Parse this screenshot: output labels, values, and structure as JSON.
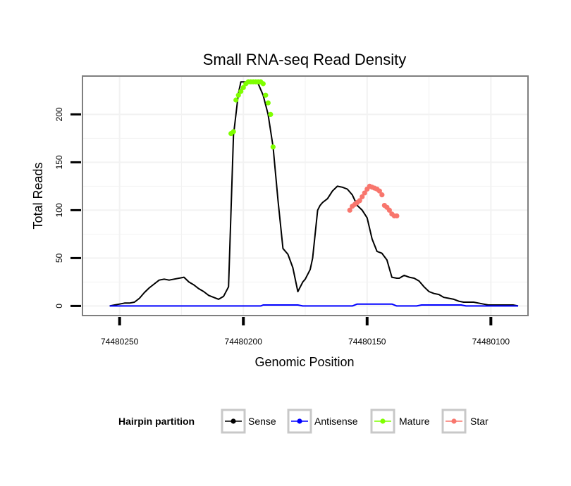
{
  "chart_data": {
    "type": "line",
    "title": "Small RNA-seq Read Density",
    "xlabel": "Genomic Position",
    "ylabel": "Total Reads",
    "x_reversed": true,
    "xlim": [
      74480265,
      74480085
    ],
    "ylim": [
      -10,
      240
    ],
    "x_ticks": [
      74480250,
      74480200,
      74480150,
      74480100
    ],
    "x_tick_labels": [
      "74480250",
      "74480200",
      "74480150",
      "74480100"
    ],
    "y_ticks": [
      0,
      50,
      100,
      150,
      200
    ],
    "y_tick_labels": [
      "0",
      "50",
      "100",
      "150",
      "200"
    ],
    "grid": true,
    "legend": {
      "title": "Hairpin partition",
      "position": "bottom",
      "entries": [
        {
          "name": "Sense",
          "color": "#000000"
        },
        {
          "name": "Antisense",
          "color": "#0000ff"
        },
        {
          "name": "Mature",
          "color": "#7fff00"
        },
        {
          "name": "Star",
          "color": "#f8766d"
        }
      ]
    },
    "series": [
      {
        "name": "Sense",
        "color": "#000000",
        "style": "line",
        "x": [
          74480254,
          74480252,
          74480250,
          74480248,
          74480246,
          74480244,
          74480242,
          74480240,
          74480238,
          74480236,
          74480234,
          74480232,
          74480230,
          74480228,
          74480226,
          74480224,
          74480222,
          74480220,
          74480218,
          74480216,
          74480214,
          74480212,
          74480210,
          74480208,
          74480206,
          74480204,
          74480202,
          74480201,
          74480199,
          74480197,
          74480196,
          74480194,
          74480192,
          74480190,
          74480188,
          74480186,
          74480184,
          74480182,
          74480180,
          74480178,
          74480176,
          74480175,
          74480173,
          74480172,
          74480170,
          74480169,
          74480168,
          74480166,
          74480164,
          74480162,
          74480160,
          74480158,
          74480156,
          74480154,
          74480152,
          74480150,
          74480148,
          74480146,
          74480144,
          74480142,
          74480140,
          74480138,
          74480137,
          74480135,
          74480133,
          74480131,
          74480129,
          74480127,
          74480125,
          74480123,
          74480121,
          74480119,
          74480117,
          74480115,
          74480113,
          74480111,
          74480109,
          74480107,
          74480105,
          74480103,
          74480101,
          74480099,
          74480097,
          74480095,
          74480093,
          74480091,
          74480089
        ],
        "y": [
          0,
          1,
          2,
          3,
          3,
          4,
          8,
          14,
          19,
          23,
          27,
          28,
          27,
          28,
          29,
          30,
          25,
          22,
          18,
          15,
          11,
          9,
          7,
          10,
          20,
          178,
          222,
          234,
          234,
          234,
          234,
          232,
          220,
          200,
          166,
          110,
          60,
          54,
          40,
          15,
          25,
          28,
          38,
          50,
          100,
          105,
          108,
          112,
          120,
          125,
          124,
          122,
          116,
          105,
          100,
          92,
          70,
          57,
          55,
          48,
          30,
          29,
          29,
          32,
          30,
          29,
          26,
          20,
          15,
          13,
          12,
          9,
          8,
          7,
          5,
          4,
          4,
          4,
          3,
          2,
          1,
          1,
          1,
          1,
          1,
          1,
          0
        ]
      },
      {
        "name": "Antisense",
        "color": "#0000ff",
        "style": "line",
        "x": [
          74480254,
          74480200,
          74480193,
          74480192,
          74480178,
          74480176,
          74480156,
          74480154,
          74480140,
          74480138,
          74480130,
          74480128,
          74480112,
          74480110,
          74480089
        ],
        "y": [
          0,
          0,
          0,
          1,
          1,
          0,
          0,
          2,
          2,
          0,
          0,
          1,
          1,
          0,
          0
        ]
      },
      {
        "name": "Mature",
        "color": "#7fff00",
        "style": "points",
        "x": [
          74480205,
          74480204,
          74480203,
          74480202,
          74480201,
          74480200,
          74480199,
          74480198,
          74480197,
          74480196,
          74480195,
          74480194,
          74480193,
          74480192,
          74480191,
          74480190,
          74480189,
          74480188
        ],
        "y": [
          180,
          182,
          215,
          220,
          224,
          228,
          232,
          234,
          234,
          234,
          234,
          234,
          234,
          232,
          220,
          212,
          200,
          166
        ]
      },
      {
        "name": "Star",
        "color": "#f8766d",
        "style": "points",
        "x": [
          74480157,
          74480156,
          74480155,
          74480154,
          74480153,
          74480152,
          74480151,
          74480150,
          74480149,
          74480148,
          74480147,
          74480146,
          74480145,
          74480144,
          74480143,
          74480142,
          74480141,
          74480140,
          74480139,
          74480138
        ],
        "y": [
          100,
          104,
          106,
          108,
          110,
          114,
          118,
          122,
          125,
          124,
          123,
          122,
          120,
          116,
          105,
          103,
          100,
          96,
          94,
          94
        ]
      }
    ]
  }
}
